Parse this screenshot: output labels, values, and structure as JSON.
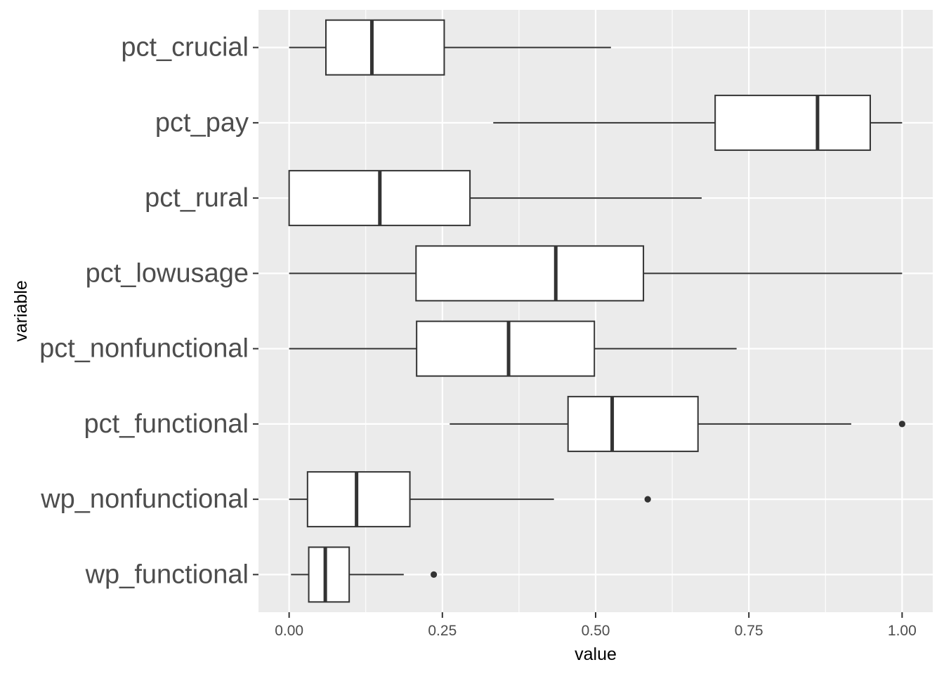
{
  "chart_data": {
    "type": "boxplot",
    "orientation": "horizontal",
    "title": "",
    "xlabel": "value",
    "ylabel": "variable",
    "xlim": [
      -0.05,
      1.05
    ],
    "x_ticks": [
      0.0,
      0.25,
      0.5,
      0.75,
      1.0
    ],
    "x_tick_labels": [
      "0.00",
      "0.25",
      "0.50",
      "0.75",
      "1.00"
    ],
    "grid": true,
    "legend": "none",
    "colors": {
      "panel": "#ebebeb",
      "grid": "#ffffff",
      "box_fill": "#ffffff",
      "stroke": "#333333",
      "tick_text": "#4d4d4d"
    },
    "categories": [
      "pct_crucial",
      "pct_pay",
      "pct_rural",
      "pct_lowusage",
      "pct_nonfunctional",
      "pct_functional",
      "wp_nonfunctional",
      "wp_functional"
    ],
    "boxes": [
      {
        "name": "pct_crucial",
        "whisker_low": 0.0,
        "q1": 0.06,
        "median": 0.135,
        "q3": 0.253,
        "whisker_high": 0.525,
        "outliers": []
      },
      {
        "name": "pct_pay",
        "whisker_low": 0.333,
        "q1": 0.695,
        "median": 0.862,
        "q3": 0.948,
        "whisker_high": 1.0,
        "outliers": []
      },
      {
        "name": "pct_rural",
        "whisker_low": 0.0,
        "q1": 0.0,
        "median": 0.148,
        "q3": 0.295,
        "whisker_high": 0.673,
        "outliers": []
      },
      {
        "name": "pct_lowusage",
        "whisker_low": 0.0,
        "q1": 0.207,
        "median": 0.435,
        "q3": 0.578,
        "whisker_high": 1.0,
        "outliers": []
      },
      {
        "name": "pct_nonfunctional",
        "whisker_low": 0.0,
        "q1": 0.208,
        "median": 0.358,
        "q3": 0.498,
        "whisker_high": 0.73,
        "outliers": []
      },
      {
        "name": "pct_functional",
        "whisker_low": 0.262,
        "q1": 0.455,
        "median": 0.527,
        "q3": 0.667,
        "whisker_high": 0.917,
        "outliers": [
          1.0
        ]
      },
      {
        "name": "wp_nonfunctional",
        "whisker_low": 0.0,
        "q1": 0.03,
        "median": 0.11,
        "q3": 0.197,
        "whisker_high": 0.432,
        "outliers": [
          0.585
        ]
      },
      {
        "name": "wp_functional",
        "whisker_low": 0.003,
        "q1": 0.032,
        "median": 0.059,
        "q3": 0.098,
        "whisker_high": 0.187,
        "outliers": [
          0.236
        ]
      }
    ]
  }
}
